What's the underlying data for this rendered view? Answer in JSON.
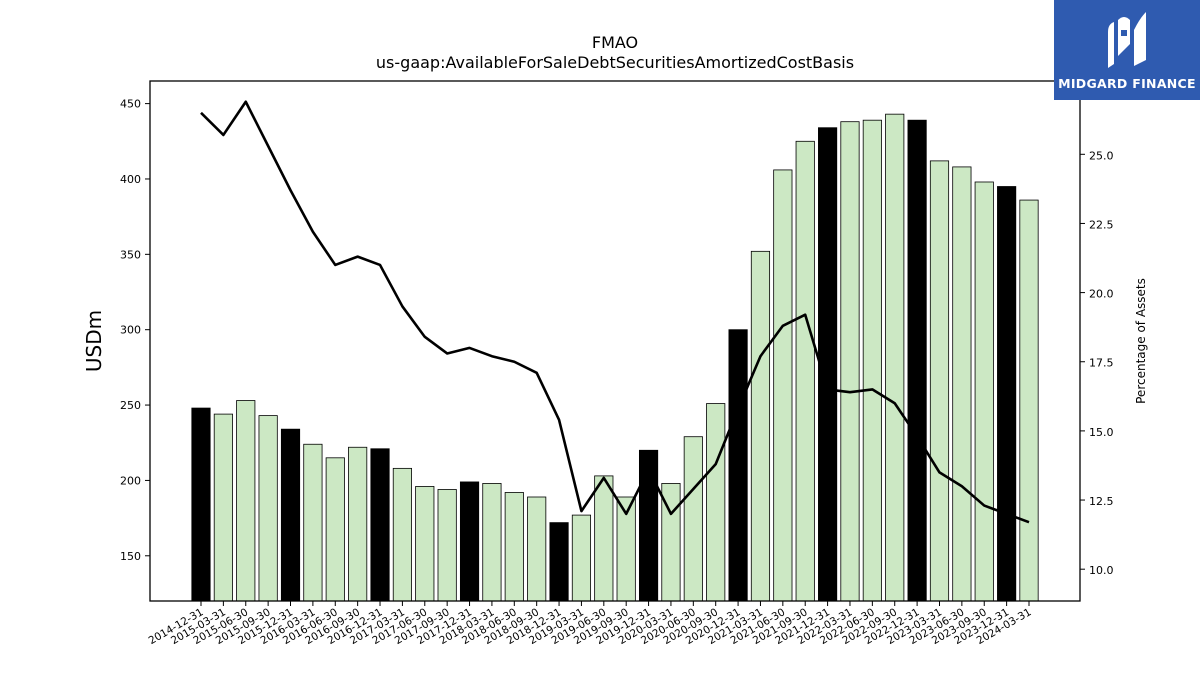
{
  "chart_data": {
    "type": "bar",
    "title": "FMAO",
    "subtitle": "us-gaap:AvailableForSaleDebtSecuritiesAmortizedCostBasis",
    "ylabel": "USDm",
    "y2label": "Percentage of Assets",
    "ylim": [
      120,
      465
    ],
    "y2lim": [
      8.85,
      27.65
    ],
    "yticks": [
      150,
      200,
      250,
      300,
      350,
      400,
      450
    ],
    "y2ticks": [
      "10.0",
      "12.5",
      "15.0",
      "17.5",
      "20.0",
      "22.5",
      "25.0"
    ],
    "categories": [
      "2014-12-31",
      "2015-03-31",
      "2015-06-30",
      "2015-09-30",
      "2015-12-31",
      "2016-03-31",
      "2016-06-30",
      "2016-09-30",
      "2016-12-31",
      "2017-03-31",
      "2017-06-30",
      "2017-09-30",
      "2017-12-31",
      "2018-03-31",
      "2018-06-30",
      "2018-09-30",
      "2018-12-31",
      "2019-03-31",
      "2019-06-30",
      "2019-09-30",
      "2019-12-31",
      "2020-03-31",
      "2020-06-30",
      "2020-09-30",
      "2020-12-31",
      "2021-03-31",
      "2021-06-30",
      "2021-09-30",
      "2021-12-31",
      "2022-03-31",
      "2022-06-30",
      "2022-09-30",
      "2022-12-31",
      "2023-03-31",
      "2023-06-30",
      "2023-09-30",
      "2023-12-31",
      "2024-03-31"
    ],
    "values": [
      248,
      244,
      253,
      243,
      234,
      224,
      215,
      222,
      221,
      208,
      196,
      194,
      199,
      198,
      192,
      189,
      172,
      177,
      203,
      189,
      220,
      198,
      229,
      251,
      300,
      352,
      406,
      425,
      434,
      438,
      439,
      443,
      439,
      412,
      408,
      398,
      395,
      386
    ],
    "year_end_highlight": [
      true,
      false,
      false,
      false,
      true,
      false,
      false,
      false,
      true,
      false,
      false,
      false,
      true,
      false,
      false,
      false,
      true,
      false,
      false,
      false,
      true,
      false,
      false,
      false,
      true,
      false,
      false,
      false,
      true,
      false,
      false,
      false,
      true,
      false,
      false,
      false,
      true,
      false
    ],
    "line_series": {
      "values": [
        26.5,
        25.7,
        26.9,
        25.3,
        23.7,
        22.2,
        21.0,
        21.3,
        21.0,
        19.5,
        18.4,
        17.8,
        18.0,
        17.7,
        17.5,
        17.1,
        15.4,
        12.1,
        13.3,
        12.0,
        13.6,
        12.0,
        12.9,
        13.8,
        15.8,
        17.7,
        18.8,
        19.2,
        16.5,
        16.4,
        16.5,
        16.0,
        14.8,
        13.5,
        13.0,
        12.3,
        12.0,
        11.7
      ]
    },
    "colors": {
      "bar": "#cce8c4",
      "bar_highlight": "#000000",
      "line": "#000000"
    },
    "grid": false,
    "legend": "none"
  },
  "logo": {
    "text": "MIDGARD FINANCE"
  }
}
